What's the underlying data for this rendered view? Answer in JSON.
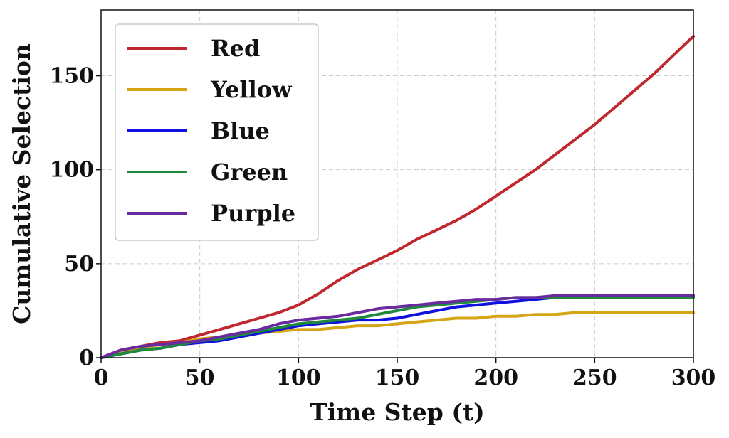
{
  "chart_data": {
    "type": "line",
    "title": "",
    "xlabel": "Time Step (t)",
    "ylabel": "Cumulative Selection",
    "xlim": [
      0,
      300
    ],
    "ylim": [
      0,
      185
    ],
    "xticks": [
      0,
      50,
      100,
      150,
      200,
      250,
      300
    ],
    "yticks": [
      0,
      50,
      100,
      150
    ],
    "grid": true,
    "legend_position": "top-left",
    "series": [
      {
        "name": "Red",
        "color": "#c0282d",
        "x": [
          0,
          10,
          20,
          30,
          40,
          50,
          60,
          70,
          80,
          90,
          100,
          110,
          120,
          130,
          140,
          150,
          160,
          170,
          180,
          190,
          200,
          210,
          220,
          230,
          240,
          250,
          260,
          270,
          280,
          290,
          300
        ],
        "y": [
          0,
          4,
          6,
          8,
          9,
          12,
          15,
          18,
          21,
          24,
          28,
          34,
          41,
          47,
          52,
          57,
          63,
          68,
          73,
          79,
          86,
          93,
          100,
          108,
          116,
          124,
          133,
          142,
          151,
          161,
          171
        ]
      },
      {
        "name": "Yellow",
        "color": "#d4a514",
        "x": [
          0,
          10,
          20,
          30,
          40,
          50,
          60,
          70,
          80,
          90,
          100,
          110,
          120,
          130,
          140,
          150,
          160,
          170,
          180,
          190,
          200,
          210,
          220,
          230,
          240,
          250,
          260,
          270,
          280,
          290,
          300
        ],
        "y": [
          0,
          3,
          5,
          7,
          8,
          10,
          11,
          12,
          13,
          14,
          15,
          15,
          16,
          17,
          17,
          18,
          19,
          20,
          21,
          21,
          22,
          22,
          23,
          23,
          24,
          24,
          24,
          24,
          24,
          24,
          24
        ]
      },
      {
        "name": "Blue",
        "color": "#1010e0",
        "x": [
          0,
          10,
          20,
          30,
          40,
          50,
          60,
          70,
          80,
          90,
          100,
          110,
          120,
          130,
          140,
          150,
          160,
          170,
          180,
          190,
          200,
          210,
          220,
          230,
          240,
          250,
          260,
          270,
          280,
          290,
          300
        ],
        "y": [
          0,
          2,
          4,
          5,
          7,
          8,
          9,
          11,
          13,
          15,
          17,
          18,
          19,
          20,
          20,
          21,
          23,
          25,
          27,
          28,
          29,
          30,
          31,
          32,
          32,
          33,
          33,
          33,
          33,
          33,
          33
        ]
      },
      {
        "name": "Green",
        "color": "#1e8a3c",
        "x": [
          0,
          10,
          20,
          30,
          40,
          50,
          60,
          70,
          80,
          90,
          100,
          110,
          120,
          130,
          140,
          150,
          160,
          170,
          180,
          190,
          200,
          210,
          220,
          230,
          240,
          250,
          260,
          270,
          280,
          290,
          300
        ],
        "y": [
          0,
          2,
          4,
          5,
          7,
          9,
          10,
          12,
          14,
          16,
          18,
          19,
          20,
          21,
          23,
          25,
          27,
          28,
          29,
          30,
          31,
          32,
          32,
          32,
          32,
          32,
          32,
          32,
          32,
          32,
          32
        ]
      },
      {
        "name": "Purple",
        "color": "#6b2ba0",
        "x": [
          0,
          10,
          20,
          30,
          40,
          50,
          60,
          70,
          80,
          90,
          100,
          110,
          120,
          130,
          140,
          150,
          160,
          170,
          180,
          190,
          200,
          210,
          220,
          230,
          240,
          250,
          260,
          270,
          280,
          290,
          300
        ],
        "y": [
          0,
          4,
          6,
          7,
          8,
          9,
          11,
          13,
          15,
          18,
          20,
          21,
          22,
          24,
          26,
          27,
          28,
          29,
          30,
          31,
          31,
          32,
          32,
          33,
          33,
          33,
          33,
          33,
          33,
          33,
          33
        ]
      }
    ]
  }
}
